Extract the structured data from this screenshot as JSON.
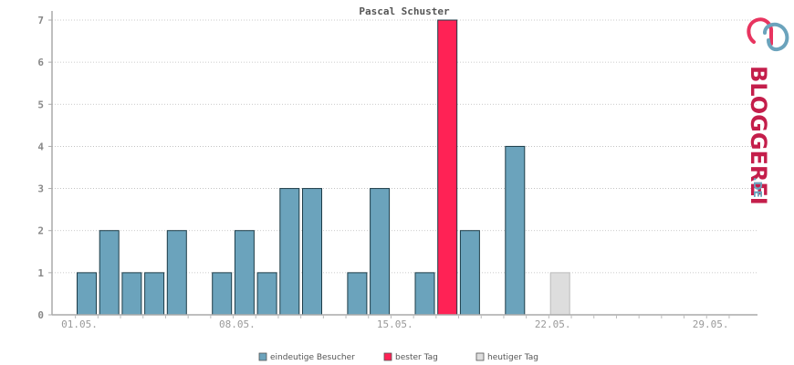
{
  "chart_data": {
    "type": "bar",
    "title": "Pascal Schuster",
    "xlabel": "",
    "ylabel": "",
    "ylim": [
      0,
      7
    ],
    "yticks": [
      "0",
      "1",
      "2",
      "3",
      "4",
      "5",
      "6",
      "7"
    ],
    "grid": true,
    "legend_position": "bottom",
    "days": [
      "01.05.",
      "02.05.",
      "03.05.",
      "04.05.",
      "05.05.",
      "06.05.",
      "07.05.",
      "08.05.",
      "09.05.",
      "10.05.",
      "11.05.",
      "12.05.",
      "13.05.",
      "14.05.",
      "15.05.",
      "16.05.",
      "17.05.",
      "18.05.",
      "19.05.",
      "20.05.",
      "21.05.",
      "22.05.",
      "23.05.",
      "24.05.",
      "25.05.",
      "26.05.",
      "27.05.",
      "28.05.",
      "29.05.",
      "30.05."
    ],
    "xtick_labels": [
      "01.05.",
      "08.05.",
      "15.05.",
      "22.05.",
      "29.05."
    ],
    "values": [
      1,
      2,
      1,
      1,
      2,
      0,
      1,
      2,
      1,
      3,
      3,
      0,
      1,
      3,
      0,
      1,
      7,
      2,
      0,
      4,
      0,
      1,
      0,
      0,
      0,
      0,
      0,
      0,
      0,
      0
    ],
    "kinds": [
      "visitors",
      "visitors",
      "visitors",
      "visitors",
      "visitors",
      "visitors",
      "visitors",
      "visitors",
      "visitors",
      "visitors",
      "visitors",
      "visitors",
      "visitors",
      "visitors",
      "visitors",
      "visitors",
      "best",
      "visitors",
      "visitors",
      "visitors",
      "visitors",
      "today",
      "visitors",
      "visitors",
      "visitors",
      "visitors",
      "visitors",
      "visitors",
      "visitors",
      "visitors"
    ],
    "legend": [
      {
        "key": "visitors",
        "label": "eindeutige Besucher",
        "color": "#6ba3bc"
      },
      {
        "key": "best",
        "label": "bester Tag",
        "color": "#ff2255"
      },
      {
        "key": "today",
        "label": "heutiger Tag",
        "color": "#dddddd"
      }
    ]
  },
  "logo": {
    "main": "BLOGGEREI",
    "suffix": ".DE"
  }
}
